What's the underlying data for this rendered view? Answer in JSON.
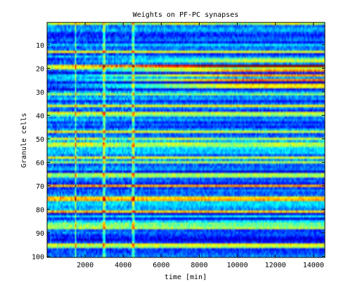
{
  "chart_data": {
    "type": "heatmap",
    "title": "Weights on PF-PC synapses",
    "xlabel": "time [min]",
    "ylabel": "Granule cells",
    "xlim": [
      0,
      14600
    ],
    "ylim": [
      0.5,
      100.5
    ],
    "y_direction": "reversed",
    "colormap": "jet",
    "grid": false,
    "x_ticks": [
      2000,
      4000,
      6000,
      8000,
      10000,
      12000,
      14000
    ],
    "x_tick_labels": [
      "2000",
      "4000",
      "6000",
      "8000",
      "10000",
      "12000",
      "14000"
    ],
    "y_ticks": [
      10,
      20,
      30,
      40,
      50,
      60,
      70,
      80,
      90,
      100
    ],
    "y_tick_labels": [
      "10",
      "20",
      "30",
      "40",
      "50",
      "60",
      "70",
      "80",
      "90",
      "100"
    ],
    "n_cells": 100,
    "vertical_stripes_min": [
      1500,
      3000,
      4500
    ],
    "high_weight_cells_late": [
      16,
      17,
      19,
      21,
      23,
      25,
      27,
      28
    ],
    "colors": {
      "low": "#00008f",
      "mid": "#7fff7f",
      "high": "#800000"
    }
  }
}
